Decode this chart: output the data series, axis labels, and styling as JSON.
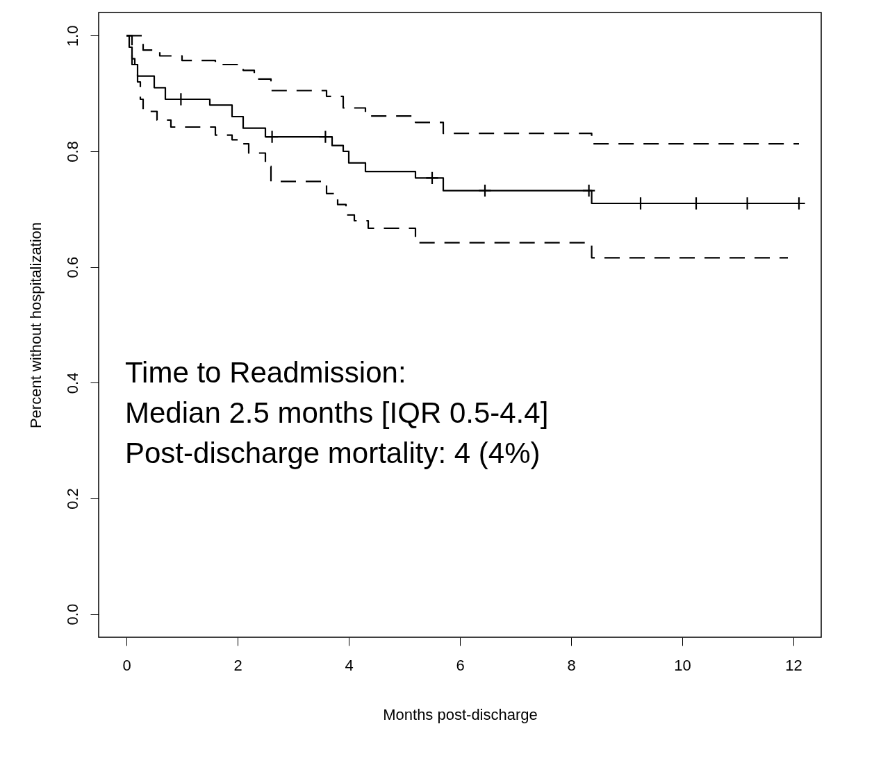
{
  "chart_data": {
    "type": "step",
    "xlabel": "Months post-discharge",
    "ylabel": "Percent without hospitalization",
    "xlim": [
      -0.5,
      12.5
    ],
    "xticks": [
      0,
      2,
      4,
      6,
      8,
      10,
      12
    ],
    "ylim": [
      -0.04,
      1.04
    ],
    "yticks": [
      {
        "value": 0,
        "label": "0.0"
      },
      0.2,
      0.4,
      0.6,
      0.8,
      {
        "value": 1,
        "label": "1.0"
      }
    ],
    "grid": false,
    "annotations": [
      "Time to Readmission:",
      "Median 2.5 months [IQR 0.5-4.4]",
      "Post-discharge mortality: 4 (4%)"
    ],
    "series": [
      {
        "color": "#000000",
        "line_style": "solid",
        "x": [
          0,
          0.05,
          0.1,
          0.15,
          0.2,
          0.5,
          0.7,
          1.5,
          1.9,
          2.1,
          2.5,
          3.7,
          3.9,
          4.0,
          4.3,
          5.2,
          5.7,
          8.37,
          12.1
        ],
        "values": [
          1.0,
          0.98,
          0.96,
          0.95,
          0.93,
          0.91,
          0.89,
          0.88,
          0.86,
          0.84,
          0.825,
          0.81,
          0.8,
          0.78,
          0.765,
          0.754,
          0.732,
          0.71,
          0.71
        ]
      },
      {
        "color": "#000000",
        "line_style": "dashed",
        "x": [
          0,
          0.3,
          0.6,
          1.0,
          1.6,
          2.1,
          2.3,
          2.6,
          3.6,
          3.9,
          4.3,
          5.2,
          5.7,
          8.37,
          12.1
        ],
        "values": [
          1.0,
          0.975,
          0.965,
          0.957,
          0.95,
          0.94,
          0.925,
          0.905,
          0.895,
          0.875,
          0.861,
          0.85,
          0.831,
          0.813,
          0.813
        ]
      },
      {
        "color": "#000000",
        "line_style": "dashed",
        "x": [
          0,
          0.1,
          0.2,
          0.25,
          0.3,
          0.55,
          0.8,
          1.6,
          1.9,
          2.1,
          2.2,
          2.5,
          2.6,
          3.6,
          3.8,
          3.95,
          4.1,
          4.35,
          5.2,
          5.7,
          8.37,
          11.9
        ],
        "values": [
          1.0,
          0.95,
          0.92,
          0.89,
          0.869,
          0.854,
          0.842,
          0.828,
          0.82,
          0.813,
          0.797,
          0.774,
          0.748,
          0.727,
          0.708,
          0.69,
          0.68,
          0.667,
          0.642,
          0.642,
          0.616,
          0.616
        ]
      },
      {
        "type": "scatter",
        "marker": "cross",
        "color": "#000000",
        "x": [
          0.98,
          2.62,
          3.58,
          5.5,
          6.45,
          8.32,
          9.25,
          10.25,
          11.17,
          12.1
        ],
        "values": [
          0.89,
          0.825,
          0.825,
          0.754,
          0.732,
          0.732,
          0.71,
          0.71,
          0.71,
          0.71
        ]
      }
    ]
  }
}
